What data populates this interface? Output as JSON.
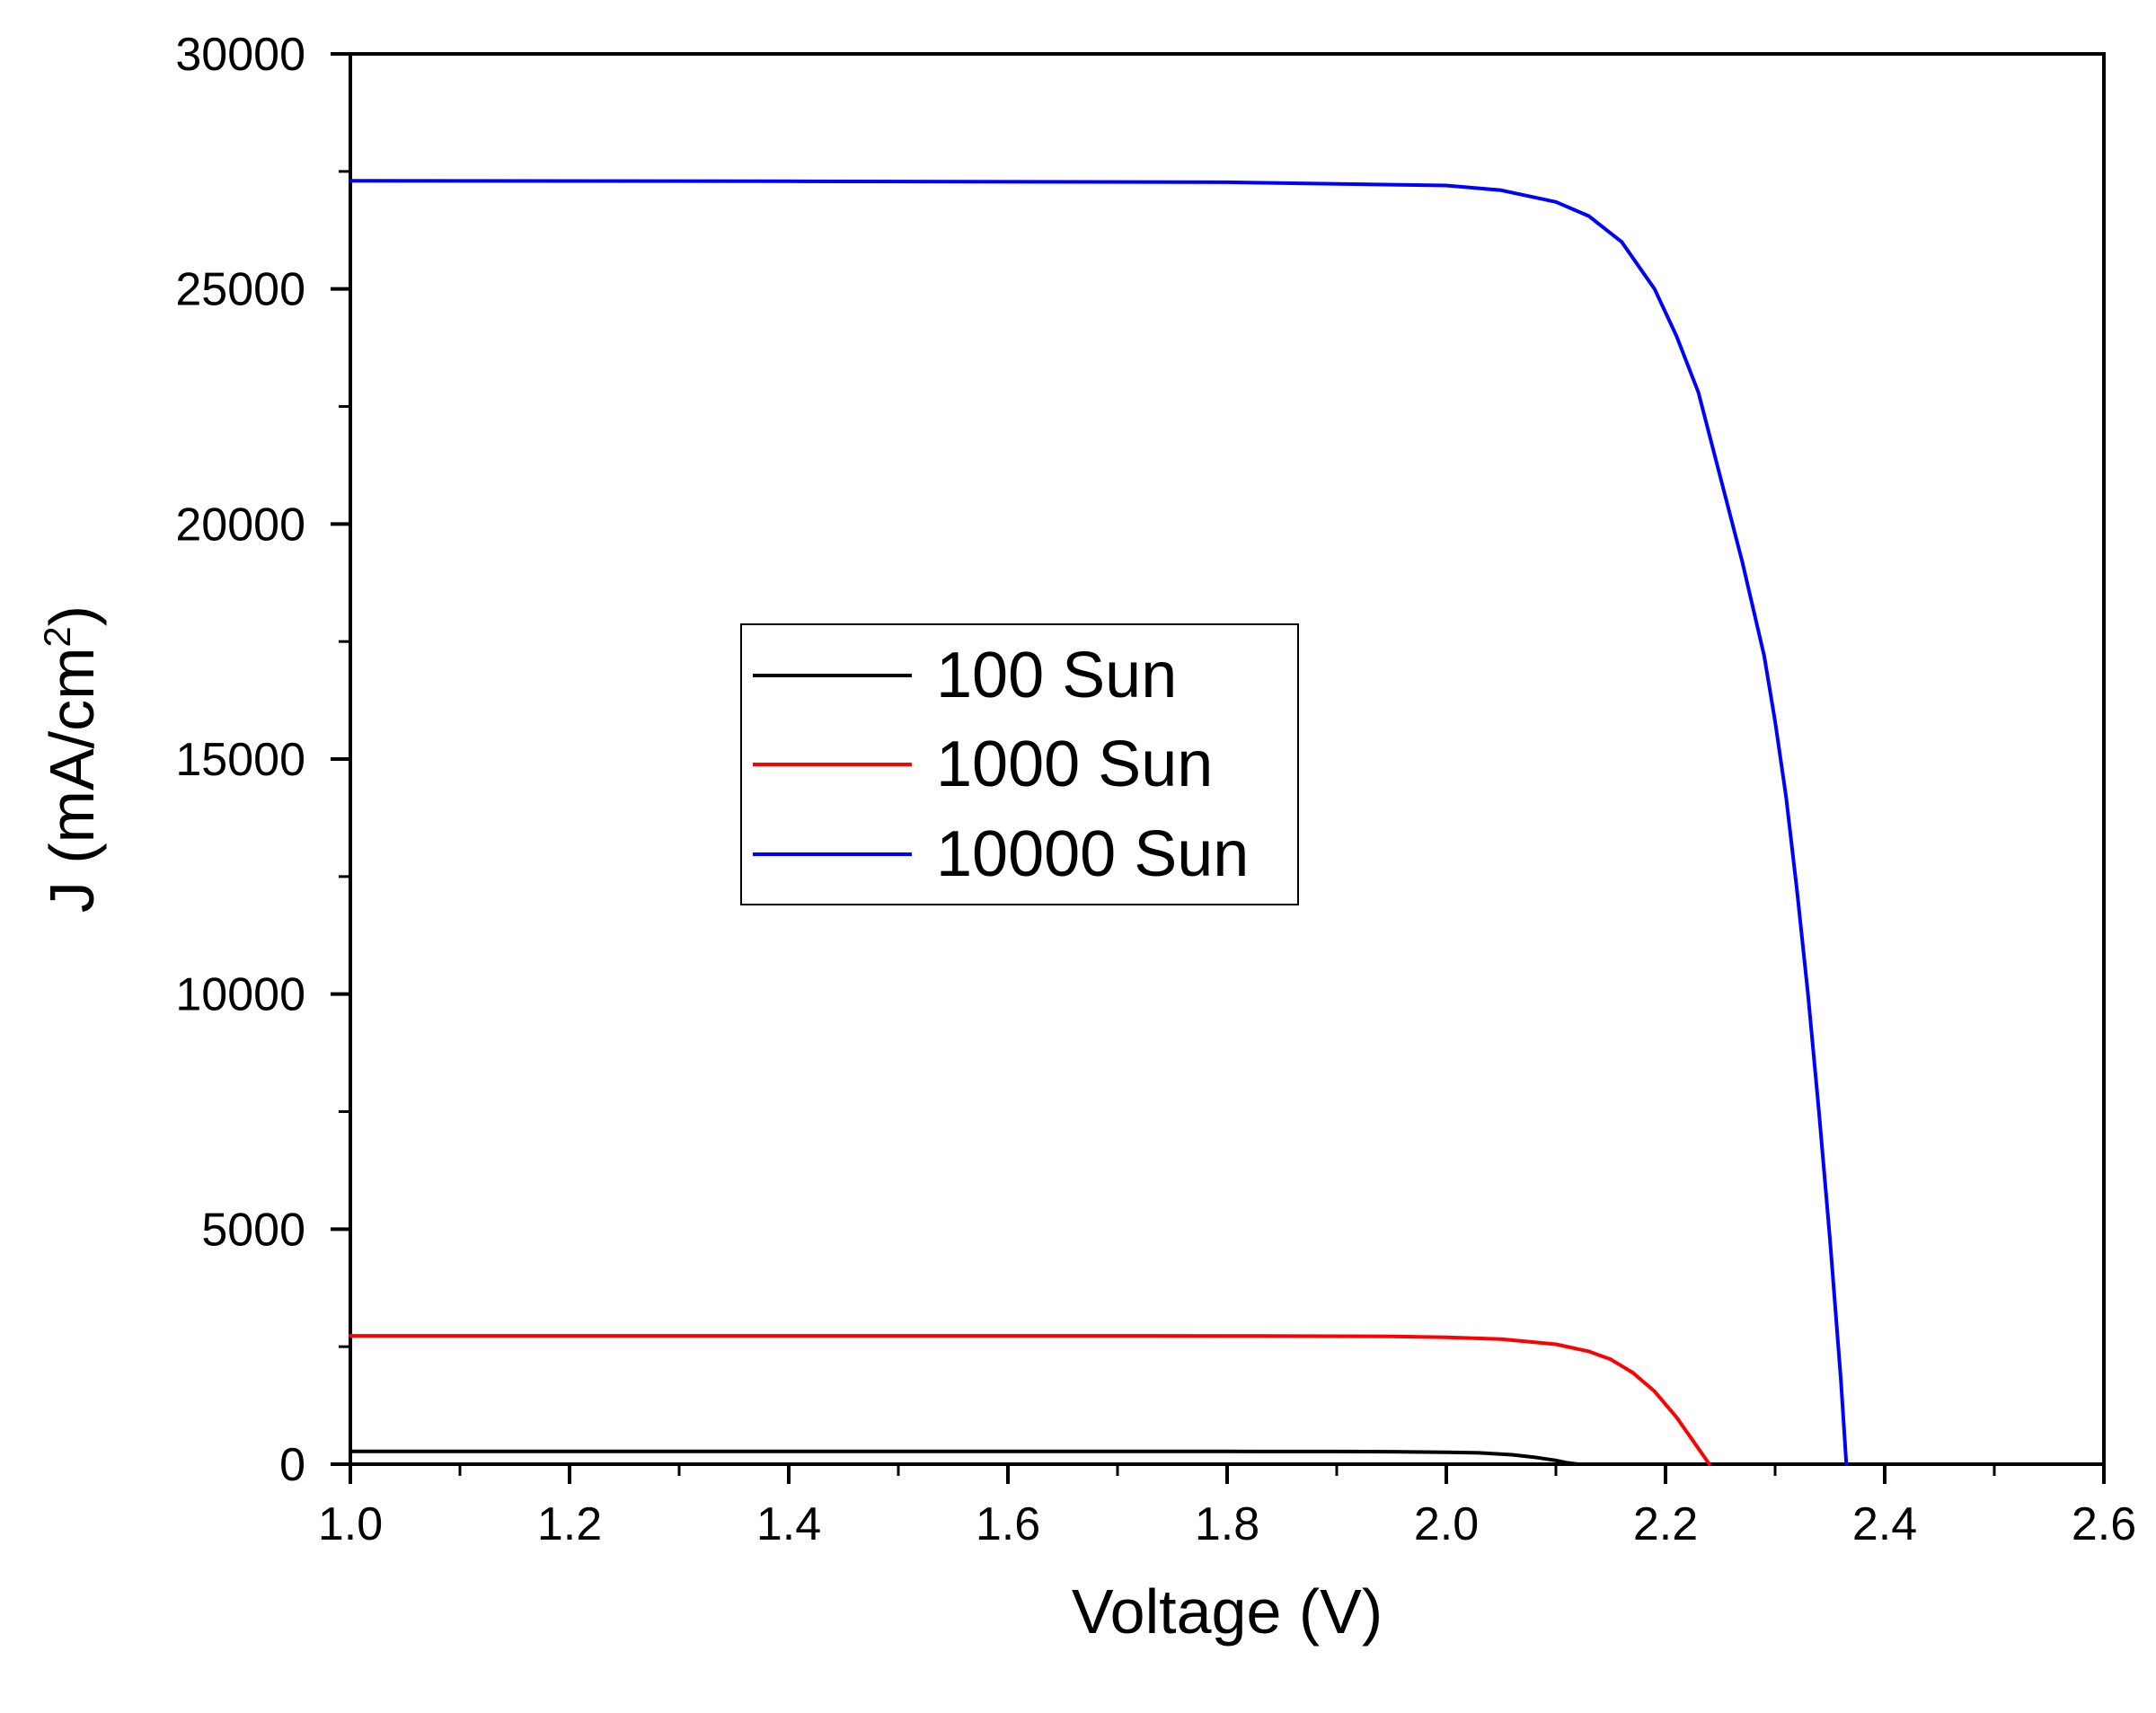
{
  "chart_data": {
    "type": "line",
    "xlabel": "Voltage (V)",
    "ylabel_main": "J (mA/cm",
    "ylabel_sup": "2",
    "ylabel_end": ")",
    "xlim": [
      1.0,
      2.6
    ],
    "ylim": [
      0,
      30000
    ],
    "x_ticks": [
      "1.0",
      "1.2",
      "1.4",
      "1.6",
      "1.8",
      "2.0",
      "2.2",
      "2.4",
      "2.6"
    ],
    "y_ticks": [
      "0",
      "5000",
      "10000",
      "15000",
      "20000",
      "25000",
      "30000"
    ],
    "legend_position": "center-left",
    "series": [
      {
        "name": "100 Sun",
        "color": "#000000",
        "x": [
          1.0,
          1.4,
          1.8,
          1.9,
          1.95,
          2.0,
          2.03,
          2.06,
          2.08,
          2.1,
          2.11,
          2.12
        ],
        "y": [
          273,
          273,
          272,
          270,
          265,
          255,
          240,
          200,
          150,
          80,
          30,
          0
        ]
      },
      {
        "name": "1000 Sun",
        "color": "#ff0000",
        "x": [
          1.0,
          1.4,
          1.8,
          1.95,
          2.0,
          2.05,
          2.1,
          2.13,
          2.15,
          2.17,
          2.19,
          2.21,
          2.225,
          2.24
        ],
        "y": [
          2730,
          2730,
          2728,
          2720,
          2700,
          2660,
          2550,
          2400,
          2230,
          1950,
          1550,
          1000,
          500,
          0
        ]
      },
      {
        "name": "10000 Sun",
        "color": "#0000ff",
        "x": [
          1.0,
          1.4,
          1.8,
          2.0,
          2.05,
          2.1,
          2.13,
          2.16,
          2.19,
          2.21,
          2.23,
          2.25,
          2.27,
          2.29,
          2.3,
          2.31,
          2.32,
          2.33,
          2.34,
          2.35,
          2.36,
          2.365
        ],
        "y": [
          27300,
          27290,
          27270,
          27200,
          27100,
          26850,
          26550,
          26000,
          25000,
          24000,
          22800,
          21000,
          19200,
          17200,
          15800,
          14200,
          12200,
          10000,
          7500,
          4800,
          1800,
          0
        ]
      }
    ]
  }
}
